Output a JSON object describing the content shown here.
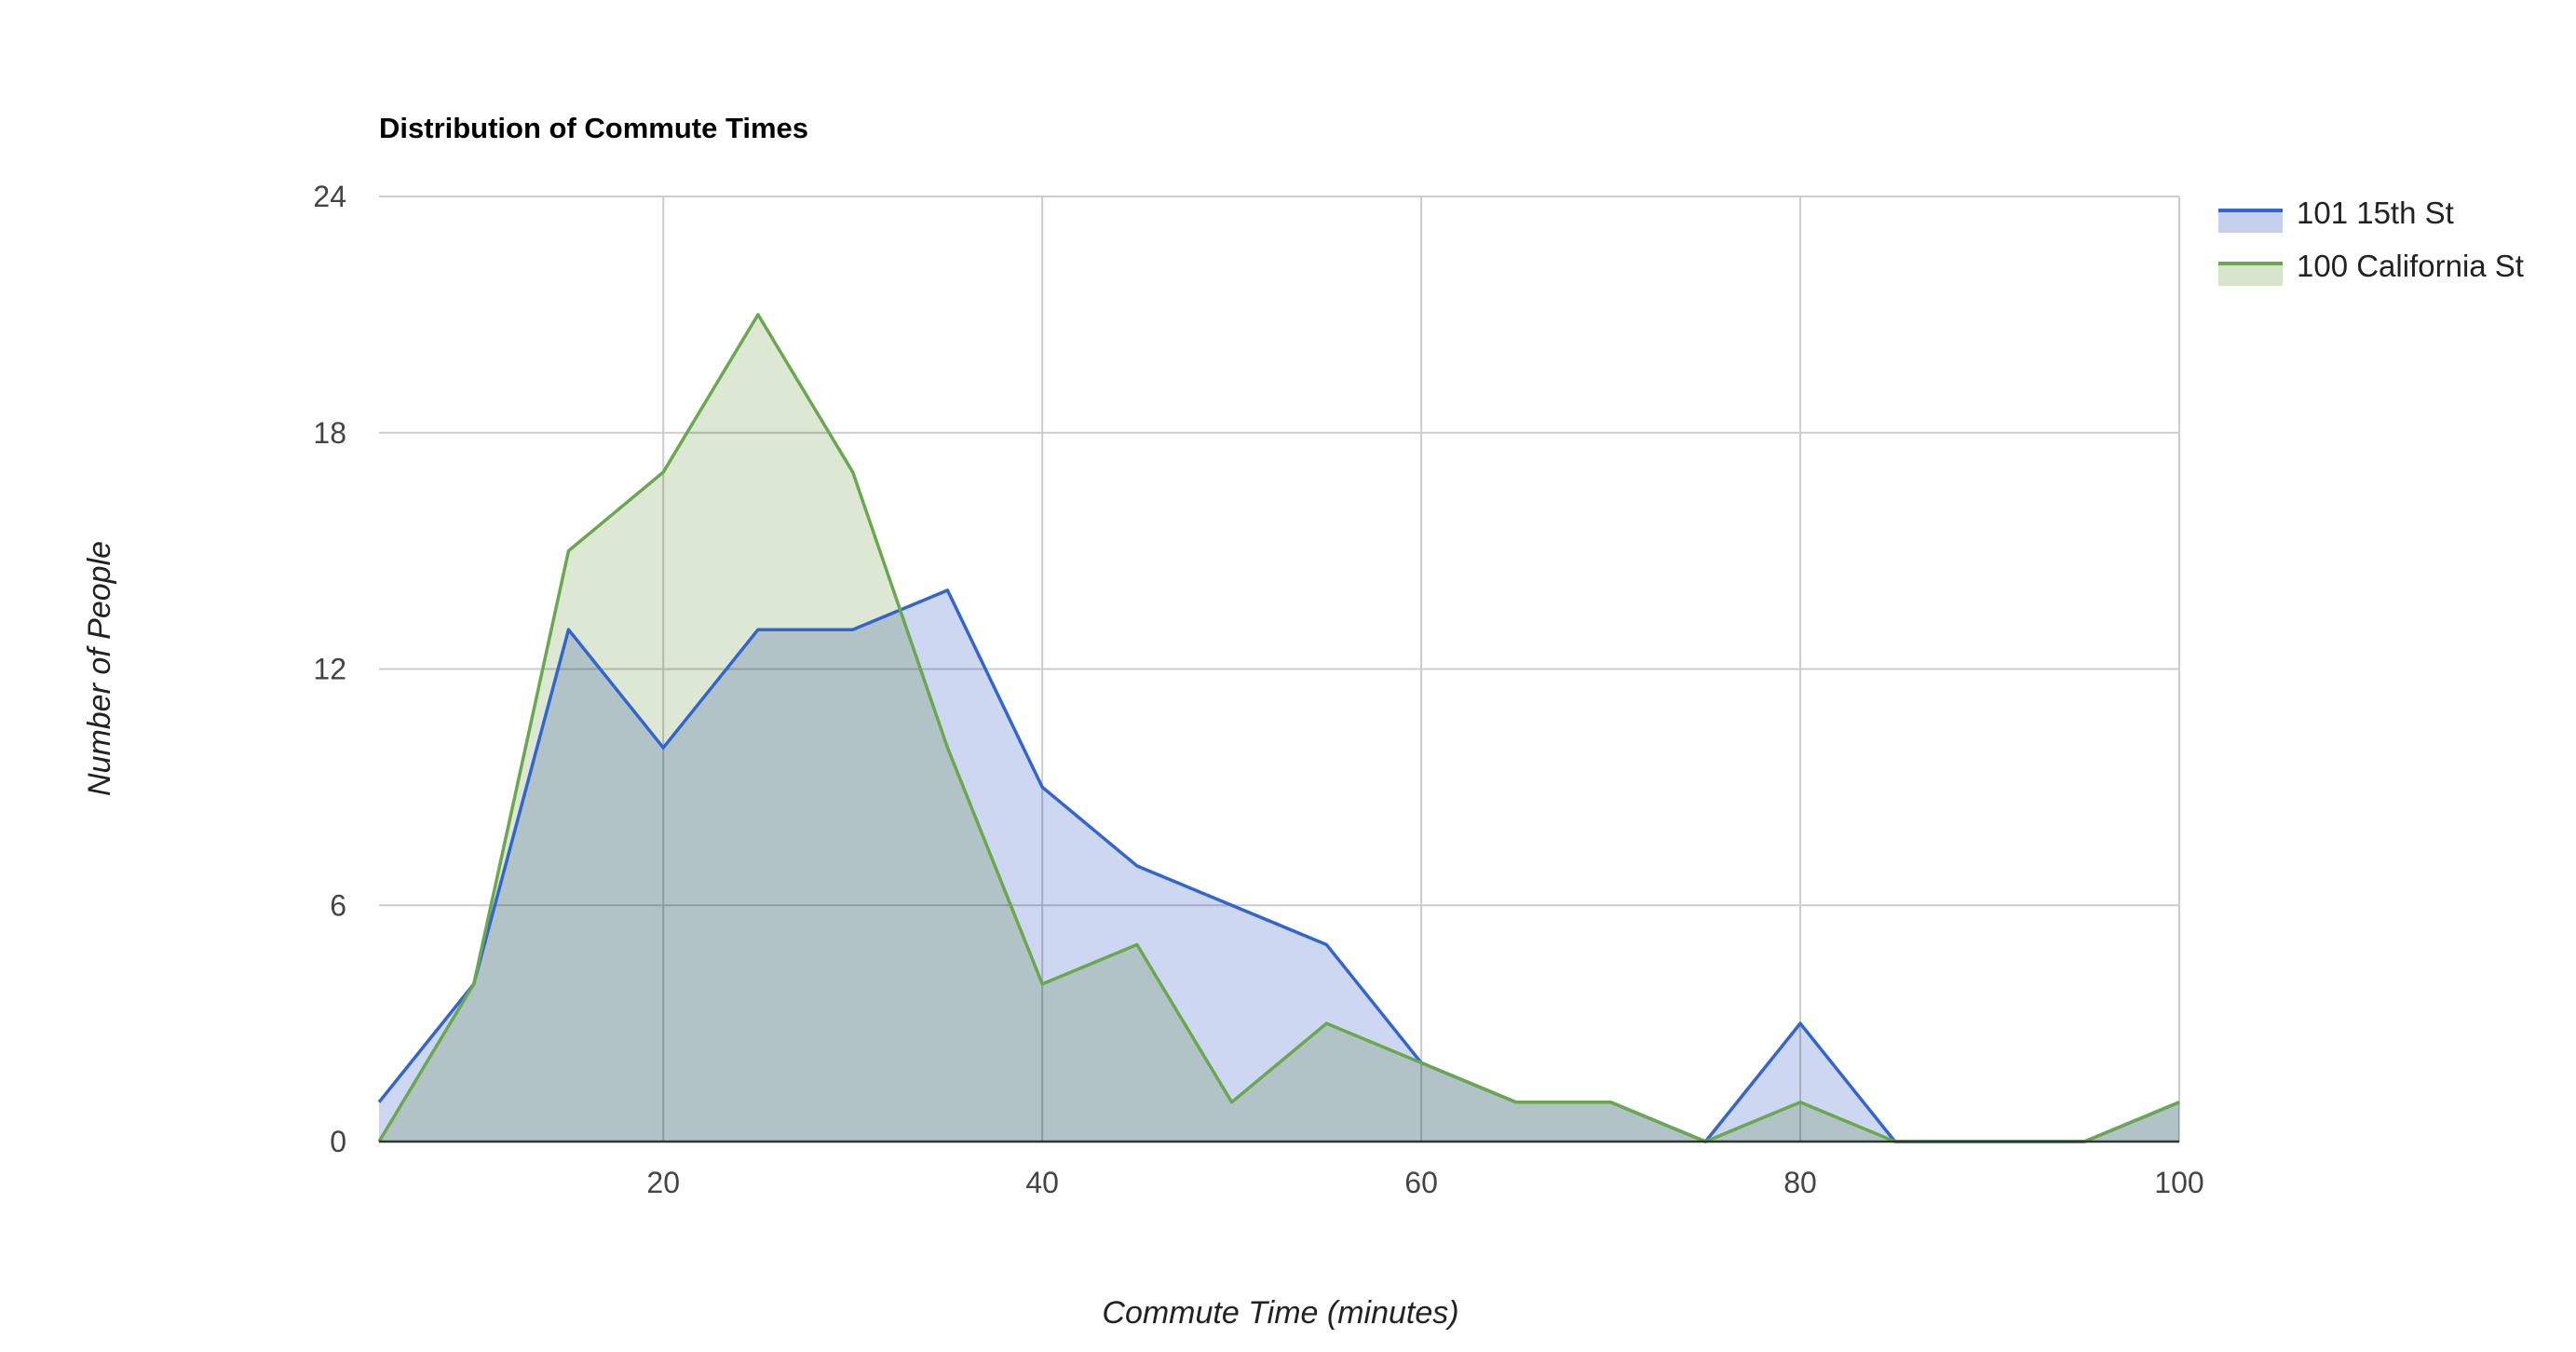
{
  "chart_data": {
    "type": "area",
    "title": "Distribution of Commute Times",
    "xlabel": "Commute Time (minutes)",
    "ylabel": "Number of People",
    "xlim": [
      5,
      100
    ],
    "ylim": [
      0,
      24
    ],
    "x_ticks": [
      20,
      40,
      60,
      80,
      100
    ],
    "y_ticks": [
      0,
      6,
      12,
      18,
      24
    ],
    "grid": true,
    "legend_position": "right",
    "x": [
      5,
      10,
      15,
      20,
      25,
      30,
      35,
      40,
      45,
      50,
      55,
      60,
      65,
      70,
      75,
      80,
      85,
      90,
      95,
      100
    ],
    "series": [
      {
        "name": "101 15th St",
        "color": "#3366cc",
        "fill": "#c5d0ee",
        "values": [
          1,
          4,
          13,
          10,
          13,
          13,
          14,
          9,
          7,
          6,
          5,
          2,
          1,
          1,
          0,
          3,
          0,
          0,
          0,
          1
        ]
      },
      {
        "name": "100 California St",
        "color": "#6aa84f",
        "fill": "#d6e4cd",
        "values": [
          0,
          4,
          15,
          17,
          21,
          17,
          10,
          4,
          5,
          1,
          3,
          2,
          1,
          1,
          0,
          1,
          0,
          0,
          0,
          1
        ]
      }
    ]
  }
}
